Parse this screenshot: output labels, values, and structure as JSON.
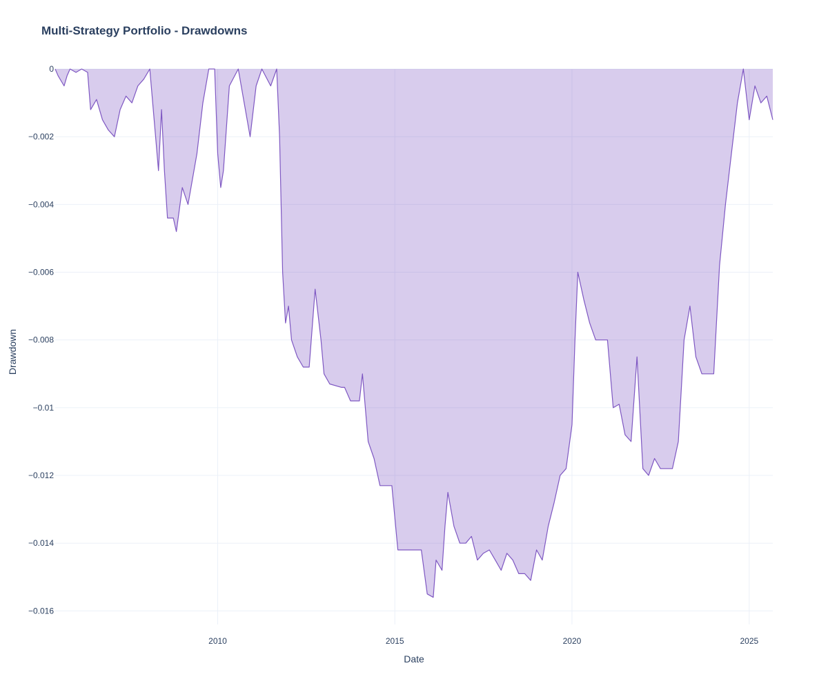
{
  "chart_data": {
    "type": "area",
    "title": "Multi-Strategy Portfolio - Drawdowns",
    "xlabel": "Date",
    "ylabel": "Drawdown",
    "x_range": [
      "2005-06-01",
      "2025-09-01"
    ],
    "ylim": [
      -0.0164,
      0
    ],
    "x_ticks": [
      {
        "value": "2010-01-01",
        "label": "2010"
      },
      {
        "value": "2015-01-01",
        "label": "2015"
      },
      {
        "value": "2020-01-01",
        "label": "2020"
      },
      {
        "value": "2025-01-01",
        "label": "2025"
      }
    ],
    "y_ticks": [
      {
        "value": 0,
        "label": "0"
      },
      {
        "value": -0.002,
        "label": "−0.002"
      },
      {
        "value": -0.004,
        "label": "−0.004"
      },
      {
        "value": -0.006,
        "label": "−0.006"
      },
      {
        "value": -0.008,
        "label": "−0.008"
      },
      {
        "value": -0.01,
        "label": "−0.01"
      },
      {
        "value": -0.012,
        "label": "−0.012"
      },
      {
        "value": -0.014,
        "label": "−0.014"
      },
      {
        "value": -0.016,
        "label": "−0.016"
      }
    ],
    "grid": true,
    "colors": {
      "line": "#7e57c2",
      "fill": "rgba(126, 87, 194, 0.3)",
      "grid": "#ebf0f8",
      "text": "#2a3f5f"
    },
    "series": [
      {
        "x": [
          "2005-06-01",
          "2005-07-01",
          "2005-09-01",
          "2005-10-01",
          "2005-11-01",
          "2006-01-01",
          "2006-03-01",
          "2006-05-01",
          "2006-06-01",
          "2006-08-01",
          "2006-10-01",
          "2006-12-01",
          "2007-02-01",
          "2007-04-01",
          "2007-06-01",
          "2007-08-01",
          "2007-10-01",
          "2007-12-01",
          "2008-02-01",
          "2008-04-01",
          "2008-05-01",
          "2008-06-01",
          "2008-07-01",
          "2008-08-01",
          "2008-09-01",
          "2008-10-01",
          "2008-11-01",
          "2009-01-01",
          "2009-03-01",
          "2009-06-01",
          "2009-08-01",
          "2009-10-01",
          "2009-12-01",
          "2010-01-01",
          "2010-02-01",
          "2010-03-01",
          "2010-05-01",
          "2010-08-01",
          "2010-10-01",
          "2010-12-01",
          "2011-02-01",
          "2011-04-01",
          "2011-07-01",
          "2011-09-01",
          "2011-10-01",
          "2011-11-01",
          "2011-12-01",
          "2012-01-01",
          "2012-02-01",
          "2012-04-01",
          "2012-06-01",
          "2012-08-01",
          "2012-10-01",
          "2012-12-01",
          "2013-01-01",
          "2013-03-01",
          "2013-07-01",
          "2013-08-01",
          "2013-10-01",
          "2014-01-01",
          "2014-02-01",
          "2014-04-01",
          "2014-06-01",
          "2014-08-01",
          "2014-10-01",
          "2014-12-01",
          "2015-02-01",
          "2015-05-01",
          "2015-07-01",
          "2015-10-01",
          "2015-12-01",
          "2016-02-01",
          "2016-03-01",
          "2016-05-01",
          "2016-06-01",
          "2016-07-01",
          "2016-09-01",
          "2016-11-01",
          "2017-01-01",
          "2017-03-01",
          "2017-05-01",
          "2017-07-01",
          "2017-09-01",
          "2017-11-01",
          "2018-01-01",
          "2018-03-01",
          "2018-05-01",
          "2018-07-01",
          "2018-09-01",
          "2018-11-01",
          "2019-01-01",
          "2019-03-01",
          "2019-05-01",
          "2019-07-01",
          "2019-09-01",
          "2019-11-01",
          "2020-01-01",
          "2020-02-01",
          "2020-03-01",
          "2020-05-01",
          "2020-07-01",
          "2020-09-01",
          "2020-11-01",
          "2021-01-01",
          "2021-03-01",
          "2021-05-01",
          "2021-07-01",
          "2021-09-01",
          "2021-11-01",
          "2022-01-01",
          "2022-03-01",
          "2022-05-01",
          "2022-07-01",
          "2022-09-01",
          "2022-11-01",
          "2023-01-01",
          "2023-03-01",
          "2023-05-01",
          "2023-07-01",
          "2023-09-01",
          "2023-11-01",
          "2024-01-01",
          "2024-03-01",
          "2024-05-01",
          "2024-07-01",
          "2024-09-01",
          "2024-11-01",
          "2025-01-01",
          "2025-03-01",
          "2025-05-01",
          "2025-07-01",
          "2025-09-01"
        ],
        "y": [
          0,
          -0.0002,
          -0.0005,
          -0.0002,
          0,
          -0.0001,
          0,
          -0.0001,
          -0.0012,
          -0.0009,
          -0.0015,
          -0.0018,
          -0.002,
          -0.0012,
          -0.0008,
          -0.001,
          -0.0005,
          -0.0003,
          0,
          -0.002,
          -0.003,
          -0.0012,
          -0.003,
          -0.0044,
          -0.0044,
          -0.0044,
          -0.0048,
          -0.0035,
          -0.004,
          -0.0025,
          -0.001,
          0,
          0,
          -0.0025,
          -0.0035,
          -0.003,
          -0.0005,
          0,
          -0.001,
          -0.002,
          -0.0005,
          0,
          -0.0005,
          0,
          -0.002,
          -0.006,
          -0.0075,
          -0.007,
          -0.008,
          -0.0085,
          -0.0088,
          -0.0088,
          -0.0065,
          -0.008,
          -0.009,
          -0.0093,
          -0.0094,
          -0.0094,
          -0.0098,
          -0.0098,
          -0.009,
          -0.011,
          -0.0115,
          -0.0123,
          -0.0123,
          -0.0123,
          -0.0142,
          -0.0142,
          -0.0142,
          -0.0142,
          -0.0155,
          -0.0156,
          -0.0145,
          -0.0148,
          -0.0135,
          -0.0125,
          -0.0135,
          -0.014,
          -0.014,
          -0.0138,
          -0.0145,
          -0.0143,
          -0.0142,
          -0.0145,
          -0.0148,
          -0.0143,
          -0.0145,
          -0.0149,
          -0.0149,
          -0.0151,
          -0.0142,
          -0.0145,
          -0.0135,
          -0.0128,
          -0.012,
          -0.0118,
          -0.0105,
          -0.008,
          -0.006,
          -0.0068,
          -0.0075,
          -0.008,
          -0.008,
          -0.008,
          -0.01,
          -0.0099,
          -0.0108,
          -0.011,
          -0.0085,
          -0.0118,
          -0.012,
          -0.0115,
          -0.0118,
          -0.0118,
          -0.0118,
          -0.011,
          -0.008,
          -0.007,
          -0.0085,
          -0.009,
          -0.009,
          -0.009,
          -0.0058,
          -0.004,
          -0.0025,
          -0.001,
          0,
          -0.0015,
          -0.0005,
          -0.001,
          -0.0008,
          -0.0015
        ]
      }
    ]
  }
}
